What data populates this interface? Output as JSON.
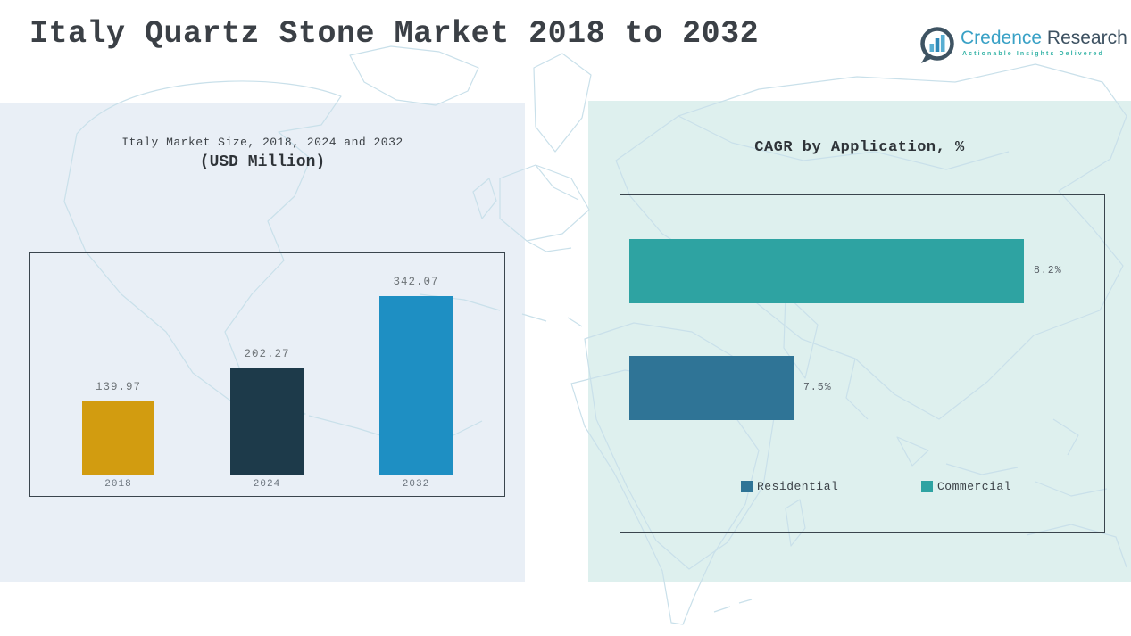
{
  "page": {
    "title": "Italy Quartz Stone Market 2018 to 2032"
  },
  "logo": {
    "brand_primary": "Credence",
    "brand_secondary": " Research",
    "tagline": "Actionable Insights Delivered",
    "colors": {
      "brand_primary": "#39a1c6",
      "brand_secondary": "#3d5161",
      "tagline": "#35b3a6"
    }
  },
  "chart_data": [
    {
      "type": "bar",
      "title": "Italy Market Size, 2018, 2024 and 2032",
      "subtitle": "(USD Million)",
      "categories": [
        "2018",
        "2024",
        "2032"
      ],
      "values": [
        139.97,
        202.27,
        342.07
      ],
      "value_labels": [
        "139.97",
        "202.27",
        "342.07"
      ],
      "bar_colors": [
        "#d29c10",
        "#1d3a4a",
        "#1e8fc3"
      ],
      "xlabel": "",
      "ylabel": "",
      "ylim": [
        0,
        425
      ],
      "grid": false,
      "legend_position": "none"
    },
    {
      "type": "bar",
      "orientation": "horizontal",
      "title": "CAGR by Application, %",
      "categories": [
        "Commercial",
        "Residential"
      ],
      "values": [
        8.2,
        7.5
      ],
      "value_labels": [
        "8.2%",
        "7.5%"
      ],
      "bar_colors": [
        "#2ea3a2",
        "#2f7496"
      ],
      "xlim": [
        7.0,
        8.44
      ],
      "grid": false,
      "legend": [
        {
          "label": "Residential",
          "color": "#2f7496"
        },
        {
          "label": "Commercial",
          "color": "#2ea3a2"
        }
      ],
      "legend_position": "bottom"
    }
  ],
  "colors": {
    "panel_left_bg": "#e9eff6",
    "panel_right_bg": "#def0ee",
    "map_stroke": "#c9e0ea",
    "chart_border": "#3a454d",
    "title_text": "#3b4046"
  }
}
